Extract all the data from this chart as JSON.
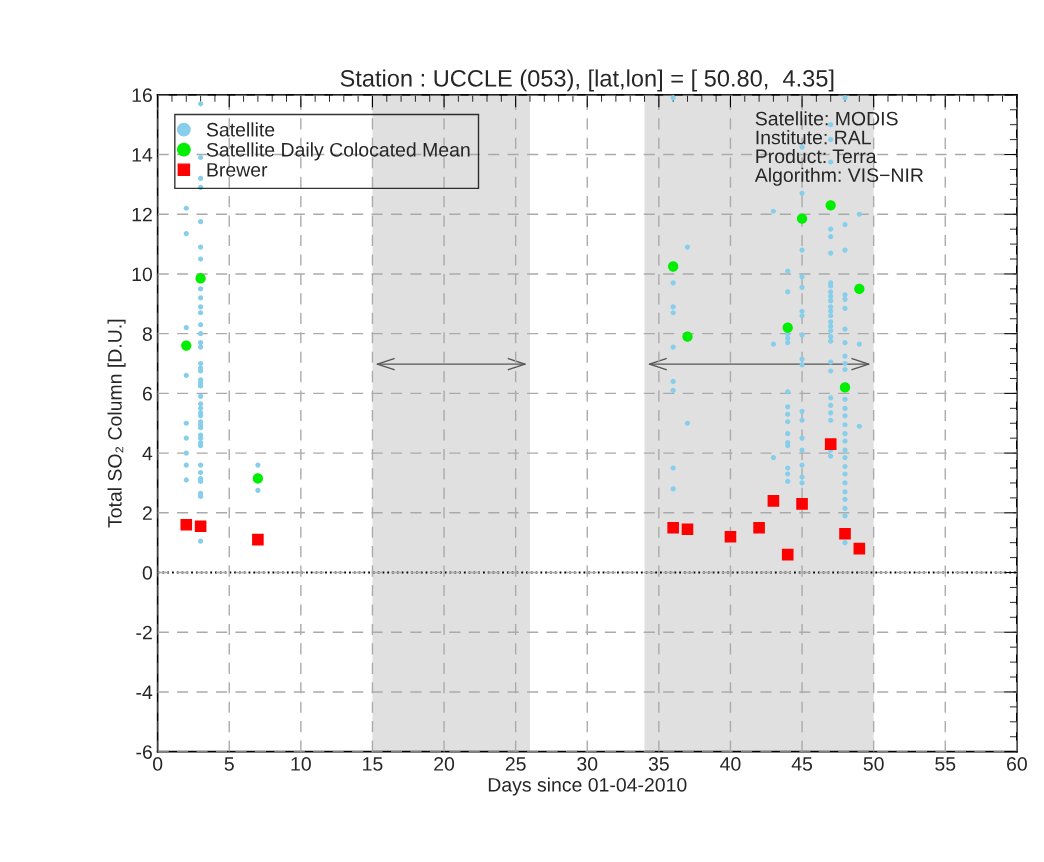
{
  "chart_data": {
    "type": "scatter",
    "title": "Station : UCCLE (053), [lat,lon] = [ 50.80,  4.35]",
    "xlabel": "Days since 01-04-2010",
    "ylabel": "Total SO₂ Column [D.U.]",
    "xlim": [
      0,
      60
    ],
    "ylim": [
      -6,
      16
    ],
    "xticks": [
      0,
      5,
      10,
      15,
      20,
      25,
      30,
      35,
      40,
      45,
      50,
      55,
      60
    ],
    "yticks": [
      -6,
      -4,
      -2,
      0,
      2,
      4,
      6,
      8,
      10,
      12,
      14,
      16
    ],
    "grid": true,
    "legend": "top left",
    "series": [
      {
        "name": "Satellite",
        "color": "#87ceeb",
        "marker": "circle",
        "x": [
          2,
          2,
          2,
          2,
          2,
          2,
          2,
          2,
          2,
          3,
          3,
          3,
          3,
          3,
          3,
          3,
          3,
          3,
          3,
          3,
          3,
          3,
          3,
          3,
          3,
          3,
          3,
          3,
          3,
          3,
          3,
          3,
          3,
          3,
          3,
          3,
          3,
          3,
          3,
          3,
          3,
          3,
          3,
          3,
          3,
          3,
          3,
          3,
          3,
          7,
          7,
          36,
          36,
          36,
          36,
          36,
          36,
          36,
          36,
          36,
          37,
          37,
          43,
          43,
          43,
          44,
          44,
          44,
          44,
          44,
          44,
          44,
          44,
          44,
          44,
          44,
          44,
          44,
          44,
          44,
          45,
          45,
          45,
          45,
          45,
          45,
          45,
          45,
          45,
          45,
          45,
          45,
          45,
          45,
          45,
          45,
          45,
          47,
          47,
          47,
          47,
          47,
          47,
          47,
          47,
          47,
          47,
          47,
          47,
          47,
          47,
          47,
          47,
          47,
          47,
          47,
          47,
          47,
          47,
          47,
          47,
          47,
          47,
          47,
          48,
          48,
          48,
          48,
          48,
          48,
          48,
          48,
          48,
          48,
          48,
          48,
          48,
          48,
          48,
          48,
          48,
          48,
          48,
          48,
          48,
          48,
          48,
          48,
          48,
          48,
          48,
          49,
          49,
          49
        ],
        "values": [
          12.2,
          11.35,
          8.2,
          6.6,
          5.0,
          4.5,
          4.0,
          3.6,
          3.1,
          15.7,
          13.9,
          13.2,
          12.9,
          11.75,
          10.9,
          10.5,
          9.5,
          9.2,
          8.9,
          8.7,
          8.3,
          8.0,
          7.7,
          7.55,
          7.0,
          6.85,
          6.75,
          6.45,
          6.35,
          6.25,
          5.9,
          5.65,
          5.5,
          5.35,
          5.25,
          5.05,
          4.95,
          4.85,
          4.6,
          4.5,
          4.35,
          4.25,
          3.6,
          3.35,
          3.15,
          3.05,
          2.65,
          2.55,
          1.05,
          3.6,
          2.75,
          15.9,
          9.7,
          8.9,
          8.7,
          7.55,
          6.4,
          6.1,
          3.5,
          2.8,
          10.9,
          5.0,
          12.1,
          7.65,
          3.85,
          10.1,
          9.4,
          8.0,
          7.85,
          7.7,
          6.05,
          5.55,
          5.3,
          5.05,
          4.65,
          4.35,
          4.25,
          3.5,
          3.3,
          3.05,
          14.25,
          12.7,
          10.8,
          9.9,
          9.55,
          8.75,
          8.6,
          7.95,
          7.15,
          6.95,
          5.4,
          5.1,
          4.5,
          4.1,
          3.6,
          3.2,
          3.0,
          15.0,
          14.5,
          13.75,
          11.5,
          11.25,
          10.7,
          9.7,
          9.6,
          9.4,
          9.25,
          9.1,
          8.9,
          8.75,
          8.6,
          8.4,
          8.25,
          8.1,
          7.9,
          7.75,
          7.05,
          6.75,
          5.85,
          5.6,
          5.35,
          5.1,
          4.1,
          3.9,
          15.9,
          11.65,
          10.8,
          9.3,
          9.15,
          8.85,
          8.15,
          7.7,
          7.25,
          7.0,
          6.8,
          5.8,
          5.5,
          5.25,
          4.95,
          4.65,
          4.4,
          4.1,
          3.85,
          3.55,
          3.3,
          3.0,
          2.7,
          2.45,
          2.15,
          1.9,
          1.0,
          12.0,
          7.65,
          4.9
        ]
      },
      {
        "name": "Satellite Daily Colocated Mean",
        "color": "#00ee00",
        "marker": "circle",
        "x": [
          2,
          3,
          7,
          36,
          37,
          44,
          45,
          47,
          48,
          49
        ],
        "values": [
          7.6,
          9.85,
          3.15,
          10.25,
          7.9,
          8.2,
          11.85,
          12.3,
          6.2,
          9.5
        ]
      },
      {
        "name": "Brewer",
        "color": "#ff0000",
        "marker": "square",
        "x": [
          2,
          3,
          7,
          36,
          37,
          40,
          42,
          43,
          44,
          45,
          47,
          48,
          49
        ],
        "values": [
          1.6,
          1.55,
          1.1,
          1.5,
          1.45,
          1.2,
          1.5,
          2.4,
          0.6,
          2.3,
          4.3,
          1.3,
          0.8
        ]
      }
    ],
    "bands": [
      {
        "axis": "x",
        "from": 15,
        "to": 26,
        "color": "#e0e0e0"
      },
      {
        "axis": "x",
        "from": 34,
        "to": 50,
        "color": "#e0e0e0"
      }
    ],
    "ref_lines": [
      {
        "axis": "y",
        "value": 0,
        "color": "#000000",
        "line_style": "dotted"
      }
    ],
    "annotations": [
      "Satellite: MODIS\nInstitute: RAL\nProduct: Terra\nAlgorithm: VIS−NIR"
    ]
  }
}
